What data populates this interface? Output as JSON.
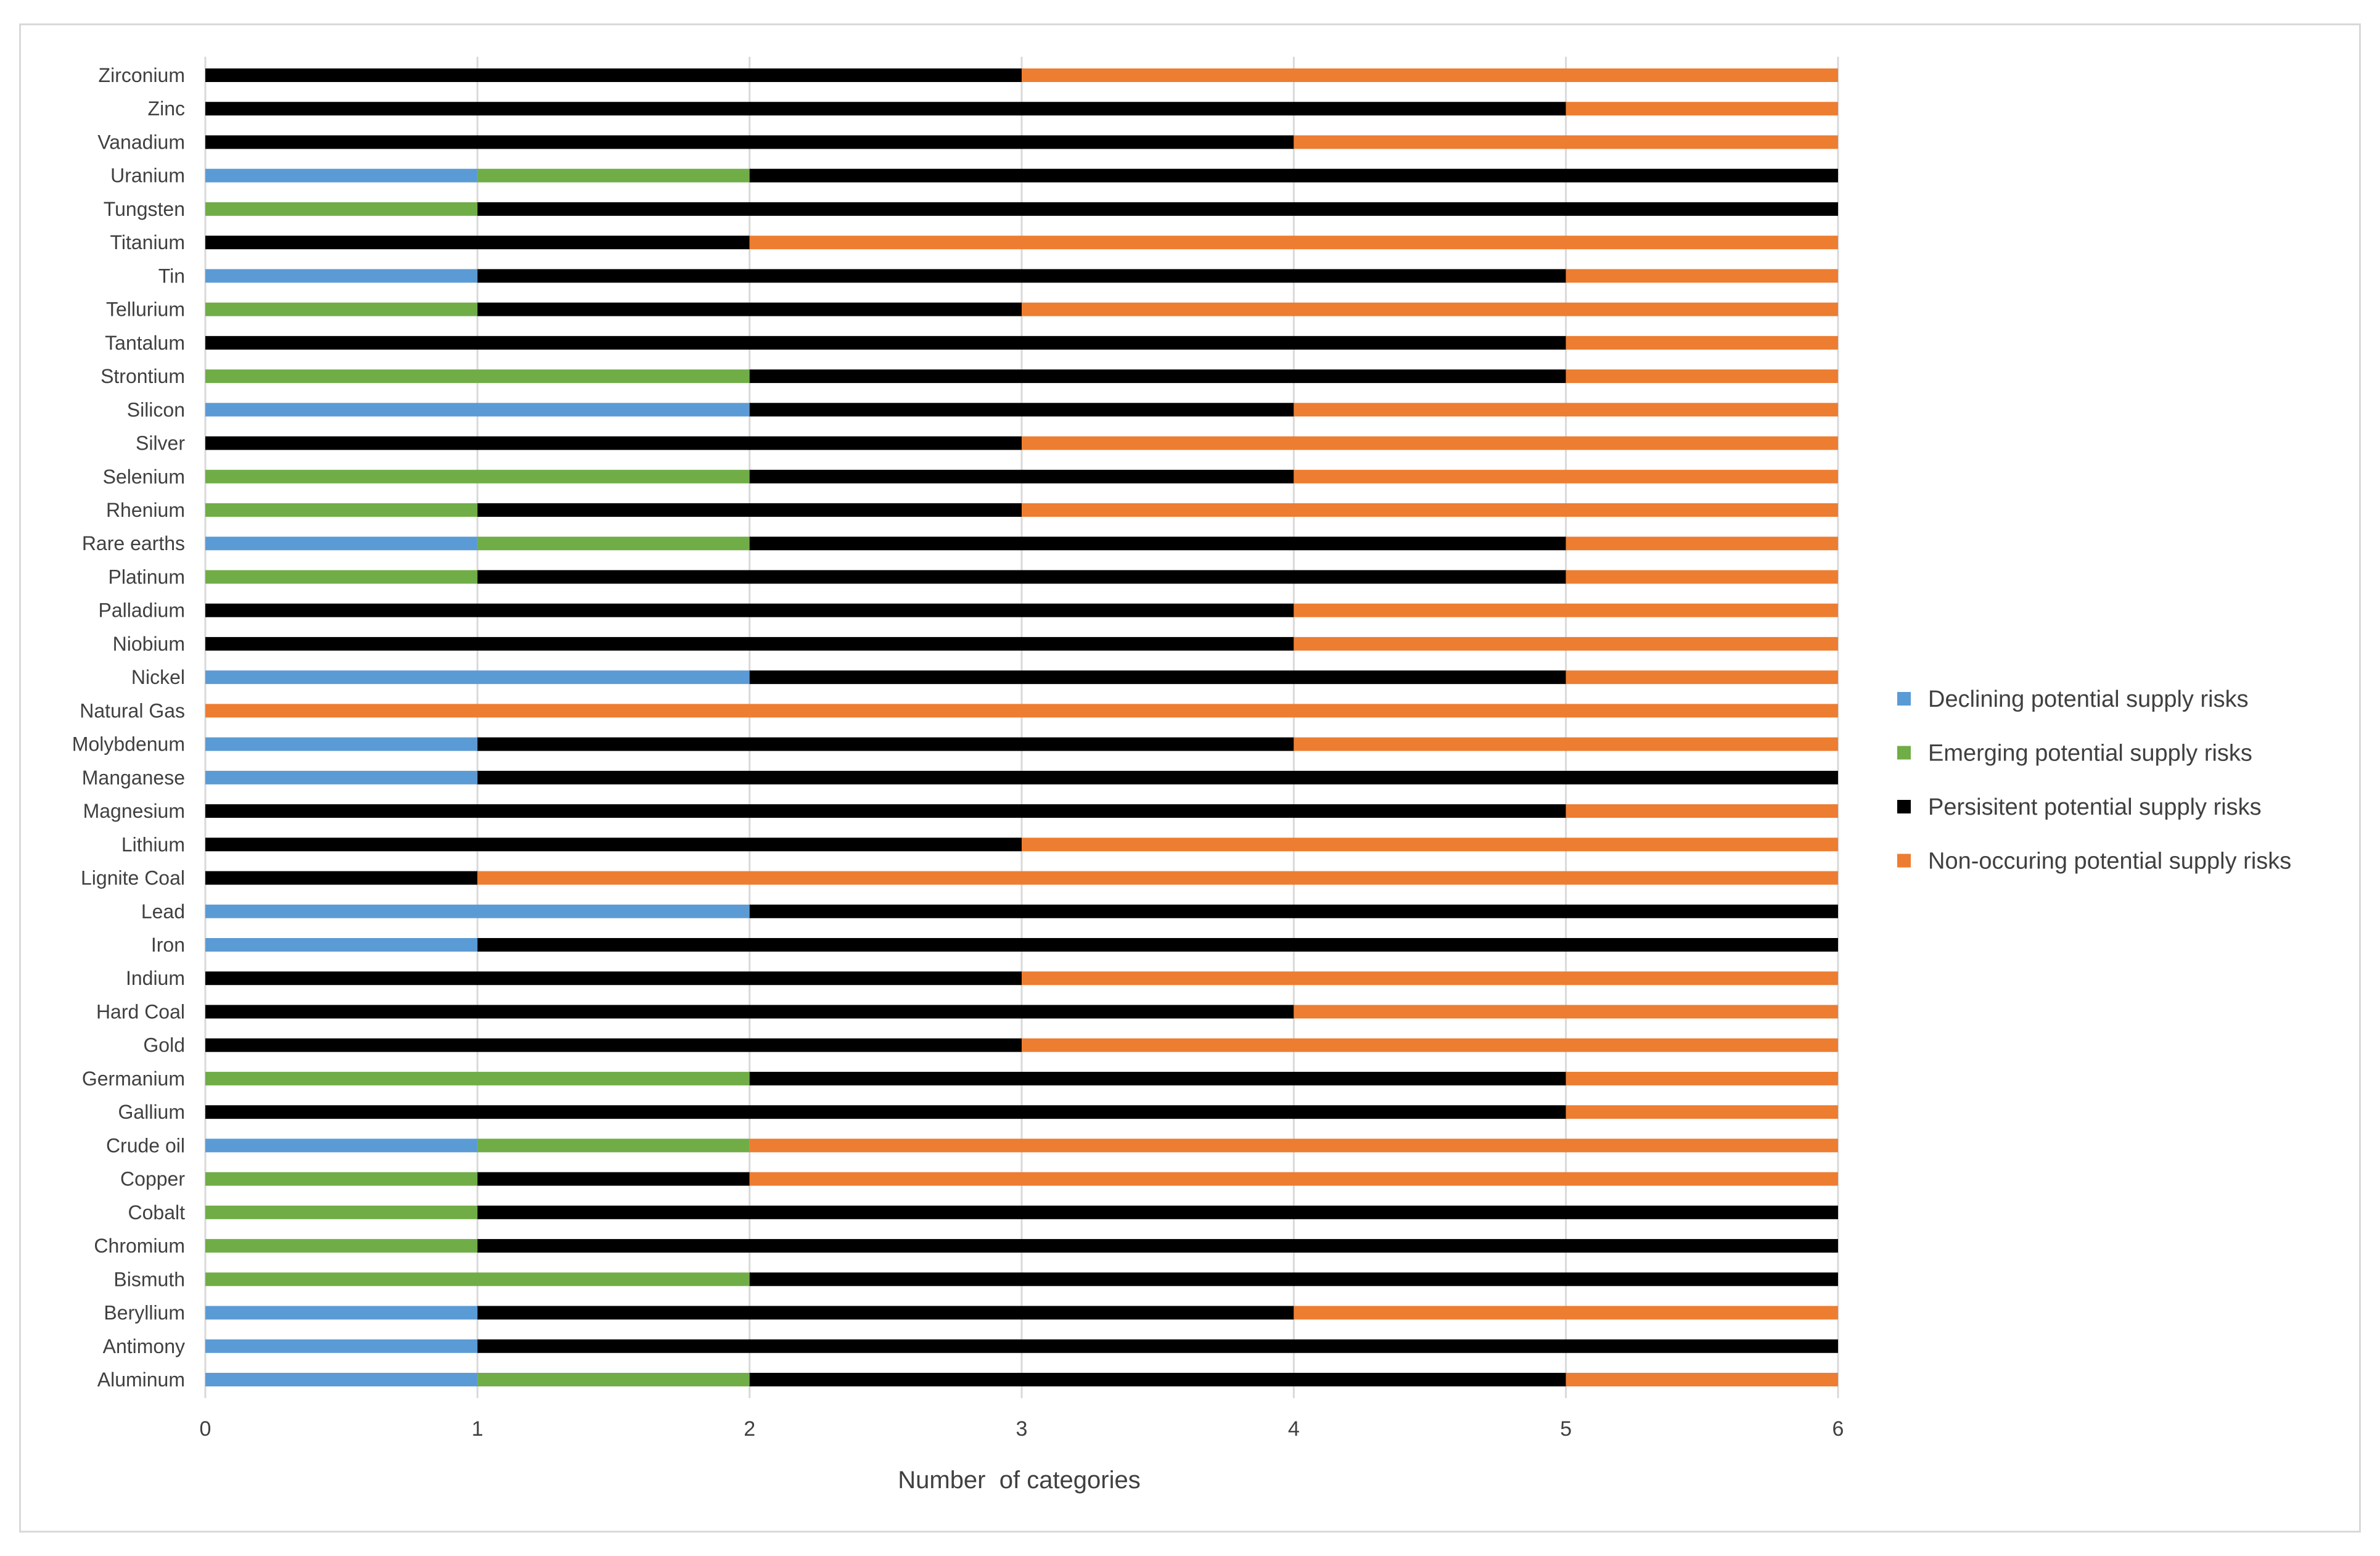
{
  "chart_data": {
    "type": "bar",
    "orientation": "horizontal",
    "stacked": true,
    "title": "",
    "xlabel": "Number  of categories",
    "ylabel": "",
    "xlim": [
      0,
      6
    ],
    "xticks": [
      "0",
      "1",
      "2",
      "3",
      "4",
      "5",
      "6"
    ],
    "grid": true,
    "legend_position": "right",
    "categories": [
      "Aluminum",
      "Antimony",
      "Beryllium ",
      "Bismuth",
      "Chromium",
      "Cobalt",
      "Copper",
      "Crude oil",
      "Gallium",
      "Germanium",
      "Gold",
      "Hard Coal",
      "Indium",
      "Iron",
      "Lead",
      "Lignite Coal",
      "Lithium",
      "Magnesium",
      "Manganese",
      "Molybdenum",
      "Natural Gas",
      "Nickel",
      "Niobium",
      "Palladium",
      "Platinum",
      "Rare earths",
      "Rhenium",
      "Selenium",
      "Silver",
      "Silicon",
      "Strontium",
      "Tantalum",
      "Tellurium",
      "Tin",
      "Titanium",
      "Tungsten",
      "Uranium",
      "Vanadium",
      "Zinc",
      "Zirconium"
    ],
    "series": [
      {
        "name": "Declining potential supply risks",
        "color": "#5b9bd5",
        "values": [
          1,
          1,
          1,
          0,
          0,
          0,
          0,
          1,
          0,
          0,
          0,
          0,
          0,
          1,
          2,
          0,
          0,
          0,
          1,
          1,
          0,
          2,
          0,
          0,
          0,
          1,
          0,
          0,
          0,
          2,
          0,
          0,
          0,
          1,
          0,
          0,
          1,
          0,
          0,
          0
        ]
      },
      {
        "name": "Emerging potential supply risks",
        "color": "#70ad47",
        "values": [
          1,
          0,
          0,
          2,
          1,
          1,
          1,
          1,
          0,
          2,
          0,
          0,
          0,
          0,
          0,
          0,
          0,
          0,
          0,
          0,
          0,
          0,
          0,
          0,
          1,
          1,
          1,
          2,
          0,
          0,
          2,
          0,
          1,
          0,
          0,
          1,
          1,
          0,
          0,
          0
        ]
      },
      {
        "name": "Persisitent potential supply risks",
        "color": "#000000",
        "values": [
          3,
          5,
          3,
          4,
          5,
          5,
          1,
          0,
          5,
          3,
          3,
          4,
          3,
          5,
          4,
          1,
          3,
          5,
          5,
          3,
          0,
          3,
          4,
          4,
          4,
          3,
          2,
          2,
          3,
          2,
          3,
          5,
          2,
          4,
          2,
          5,
          4,
          4,
          5,
          3
        ]
      },
      {
        "name": "Non-occuring potential supply risks",
        "color": "#ed7d31",
        "values": [
          1,
          0,
          2,
          0,
          0,
          0,
          4,
          4,
          1,
          1,
          3,
          2,
          3,
          0,
          0,
          5,
          3,
          1,
          0,
          2,
          6,
          1,
          2,
          2,
          1,
          1,
          3,
          2,
          3,
          2,
          1,
          1,
          3,
          1,
          4,
          0,
          0,
          2,
          1,
          3
        ]
      }
    ]
  }
}
